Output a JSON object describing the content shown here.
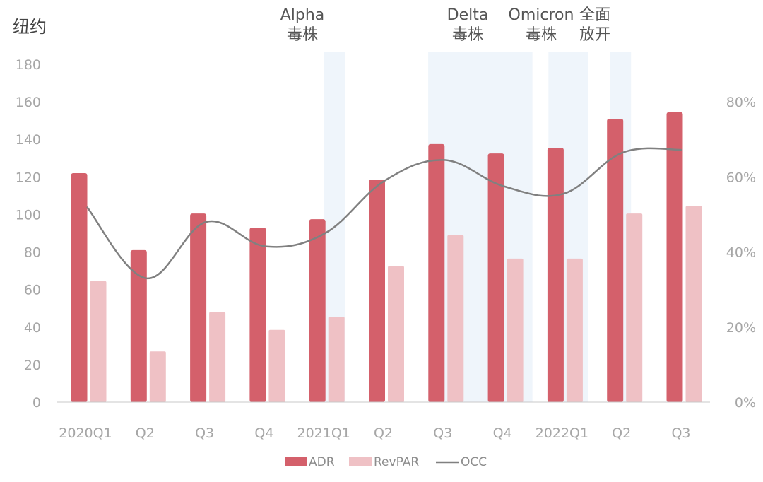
{
  "chart_data": {
    "type": "bar",
    "title": "纽约",
    "categories": [
      "2020Q1",
      "Q2",
      "Q3",
      "Q4",
      "2021Q1",
      "Q2",
      "Q3",
      "Q4",
      "2022Q1",
      "Q2",
      "Q3"
    ],
    "series": [
      {
        "name": "ADR",
        "type": "bar",
        "color": "#d4606b",
        "values": [
          122,
          81,
          100.5,
          93,
          97.5,
          118.5,
          137.5,
          132.5,
          135.5,
          151,
          154.5
        ]
      },
      {
        "name": "RevPAR",
        "type": "bar",
        "color": "#efc1c5",
        "values": [
          64.5,
          27,
          48,
          38.5,
          45.5,
          72.5,
          89,
          76.5,
          76.5,
          100.5,
          104.5
        ]
      },
      {
        "name": "OCC",
        "type": "line",
        "axis": "right",
        "color": "#808080",
        "values": [
          0.52,
          0.33,
          0.48,
          0.415,
          0.45,
          0.59,
          0.645,
          0.575,
          0.555,
          0.665,
          0.672
        ]
      }
    ],
    "left_axis": {
      "ylim": [
        0,
        180
      ],
      "ticks": [
        "0",
        "20",
        "40",
        "60",
        "80",
        "100",
        "120",
        "140",
        "160",
        "180"
      ]
    },
    "right_axis": {
      "ylim": [
        0,
        0.9
      ],
      "ticks": [
        "0%",
        "20%",
        "40%",
        "60%",
        "80%"
      ]
    },
    "annotations": [
      {
        "text": "Alpha\n毒株",
        "band": [
          4,
          4
        ]
      },
      {
        "text": "Delta\n毒株",
        "band": [
          6,
          7
        ]
      },
      {
        "text": "Omicron\n毒株",
        "band": [
          8,
          8
        ]
      },
      {
        "text": "全面\n放开",
        "band": [
          9,
          9
        ]
      }
    ],
    "legend": {
      "position": "bottom",
      "entries": [
        "ADR",
        "RevPAR",
        "OCC"
      ]
    },
    "grid": false
  }
}
